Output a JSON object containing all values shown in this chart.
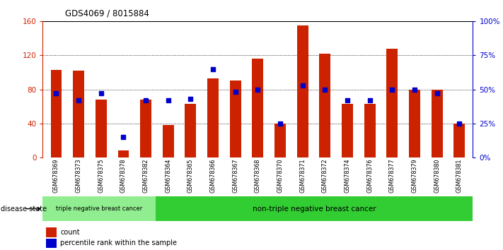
{
  "title": "GDS4069 / 8015884",
  "samples": [
    "GSM678369",
    "GSM678373",
    "GSM678375",
    "GSM678378",
    "GSM678382",
    "GSM678364",
    "GSM678365",
    "GSM678366",
    "GSM678367",
    "GSM678368",
    "GSM678370",
    "GSM678371",
    "GSM678372",
    "GSM678374",
    "GSM678376",
    "GSM678377",
    "GSM678379",
    "GSM678380",
    "GSM678381"
  ],
  "counts": [
    103,
    102,
    68,
    8,
    68,
    38,
    63,
    93,
    90,
    116,
    40,
    155,
    122,
    63,
    63,
    128,
    80,
    80,
    40
  ],
  "percentiles": [
    47,
    42,
    47,
    15,
    42,
    42,
    43,
    65,
    48,
    50,
    25,
    53,
    50,
    42,
    42,
    50,
    50,
    47,
    25
  ],
  "triple_neg_count": 5,
  "group1_label": "triple negative breast cancer",
  "group2_label": "non-triple negative breast cancer",
  "disease_state_label": "disease state",
  "ylim_left": [
    0,
    160
  ],
  "ylim_right": [
    0,
    100
  ],
  "yticks_left": [
    0,
    40,
    80,
    120,
    160
  ],
  "yticks_right": [
    0,
    25,
    50,
    75,
    100
  ],
  "ytick_labels_right": [
    "0%",
    "25%",
    "50%",
    "75%",
    "100%"
  ],
  "bar_color": "#cc2200",
  "dot_color": "#0000cc",
  "bg_color": "#ffffff",
  "axis_left_color": "#cc2200",
  "axis_right_color": "#0000cc",
  "legend_count_label": "count",
  "legend_percentile_label": "percentile rank within the sample",
  "bar_width": 0.5,
  "tick_label_bg": "#c8c8c8",
  "group1_color": "#90ee90",
  "group2_color": "#32cd32"
}
